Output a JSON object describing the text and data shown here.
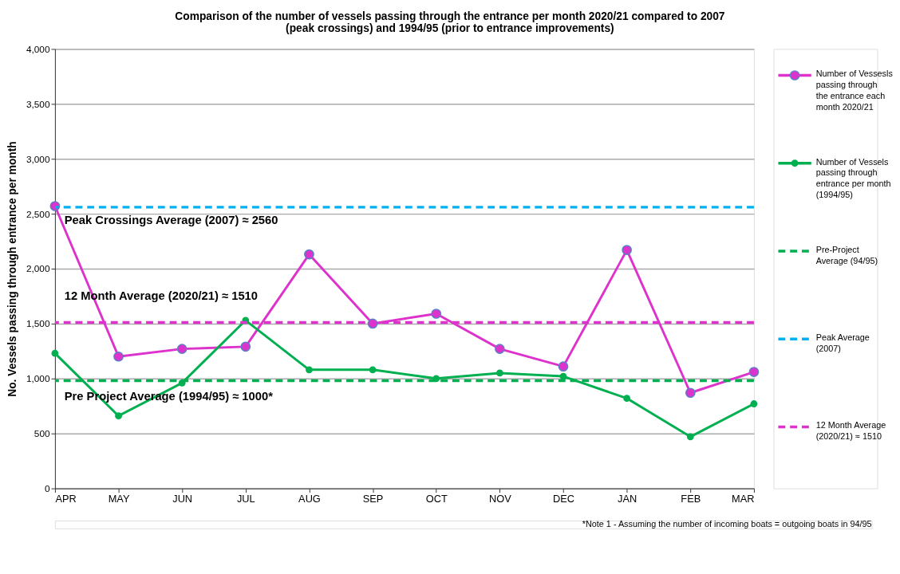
{
  "chart_data": {
    "type": "line",
    "title": "Comparison of the number of vessels passing through the entrance per month 2020/21 compared to 2007 (peak crossings) and 1994/95 (prior to entrance improvements)",
    "ylabel": "No. Vessels passing through entrance per month",
    "categories": [
      "APR",
      "MAY",
      "JUN",
      "JUL",
      "AUG",
      "SEP",
      "OCT",
      "NOV",
      "DEC",
      "JAN",
      "FEB",
      "MAR"
    ],
    "series": [
      {
        "name": "Number of Vessesls passing through the entrance each month 2020/21",
        "color": "#dd33cc",
        "values": [
          2570,
          1200,
          1270,
          1290,
          2130,
          1500,
          1590,
          1270,
          1110,
          2170,
          870,
          1060
        ]
      },
      {
        "name": "Number of Vessels passing through entrance per month (1994/95)",
        "color": "#00b050",
        "values": [
          1230,
          660,
          960,
          1530,
          1080,
          1080,
          1000,
          1050,
          1020,
          820,
          470,
          770
        ]
      }
    ],
    "ref_lines": [
      {
        "axis": "y",
        "value": 980,
        "label": "Pre-Project Average (94/95)",
        "color": "#00b050",
        "line_style": "dashed"
      },
      {
        "axis": "y",
        "value": 2560,
        "label": "Peak Average (2007)",
        "color": "#00b0f0",
        "line_style": "dashed"
      },
      {
        "axis": "y",
        "value": 1510,
        "label": "12 Month Average (2020/21)  ≈ 1510",
        "color": "#dd33cc",
        "line_style": "dashed"
      }
    ],
    "annotations": [
      "Peak Crossings Average (2007) ≈ 2560",
      "12 Month Average (2020/21) ≈ 1510",
      "Pre Project Average (1994/95) ≈ 1000*",
      "*Note 1 - Assuming the number of incoming boats = outgoing boats  in 94/95"
    ],
    "ylim": [
      0,
      4000
    ],
    "yticks": [
      0,
      500,
      {
        "value": 1000,
        "label": "1,000"
      },
      {
        "value": 1500,
        "label": "1,500"
      },
      {
        "value": 2000,
        "label": "2,000"
      },
      {
        "value": 2500,
        "label": "2,500"
      },
      {
        "value": 3000,
        "label": "3,000"
      },
      {
        "value": 3500,
        "label": "3,500"
      },
      {
        "value": 4000,
        "label": "4,000"
      }
    ],
    "grid": "y",
    "legend": "right",
    "marker": "circle",
    "line_style": "solid"
  }
}
